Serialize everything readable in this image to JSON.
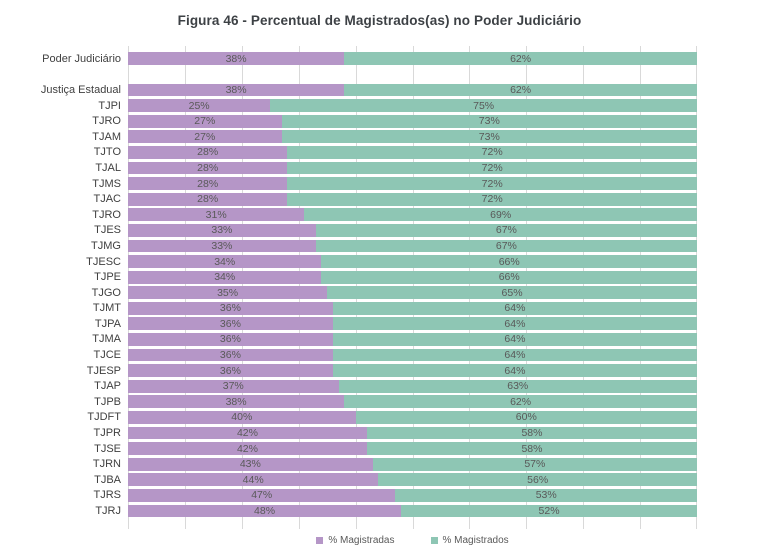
{
  "title": "Figura 46 - Percentual de Magistrados(as) no Poder Judiciário",
  "colors": {
    "magistradas": "#b596c7",
    "magistrados": "#8ec6b4",
    "gridline": "#d9d9d9",
    "title_text": "#3d4145",
    "label_text": "#404040",
    "value_text": "#595959"
  },
  "chart_data": {
    "type": "bar",
    "orientation": "horizontal",
    "stacked": true,
    "title": "Figura 46 - Percentual de Magistrados(as) no Poder Judiciário",
    "xlim": [
      0,
      100
    ],
    "unit": "%",
    "gridlines": "vertical, every 10%",
    "legend_position": "bottom-center",
    "series": [
      {
        "name": "% Magistradas",
        "color": "#b596c7"
      },
      {
        "name": "% Magistrados",
        "color": "#8ec6b4"
      }
    ],
    "rows": [
      {
        "label": "Poder Judiciário",
        "magistradas": 38,
        "magistrados": 62
      },
      {
        "label": "",
        "spacer": true
      },
      {
        "label": "Justiça Estadual",
        "magistradas": 38,
        "magistrados": 62
      },
      {
        "label": "TJPI",
        "magistradas": 25,
        "magistrados": 75
      },
      {
        "label": "TJRO",
        "magistradas": 27,
        "magistrados": 73
      },
      {
        "label": "TJAM",
        "magistradas": 27,
        "magistrados": 73
      },
      {
        "label": "TJTO",
        "magistradas": 28,
        "magistrados": 72
      },
      {
        "label": "TJAL",
        "magistradas": 28,
        "magistrados": 72
      },
      {
        "label": "TJMS",
        "magistradas": 28,
        "magistrados": 72
      },
      {
        "label": "TJAC",
        "magistradas": 28,
        "magistrados": 72
      },
      {
        "label": "TJRO",
        "magistradas": 31,
        "magistrados": 69
      },
      {
        "label": "TJES",
        "magistradas": 33,
        "magistrados": 67
      },
      {
        "label": "TJMG",
        "magistradas": 33,
        "magistrados": 67
      },
      {
        "label": "TJESC",
        "magistradas": 34,
        "magistrados": 66
      },
      {
        "label": "TJPE",
        "magistradas": 34,
        "magistrados": 66
      },
      {
        "label": "TJGO",
        "magistradas": 35,
        "magistrados": 65
      },
      {
        "label": "TJMT",
        "magistradas": 36,
        "magistrados": 64
      },
      {
        "label": "TJPA",
        "magistradas": 36,
        "magistrados": 64
      },
      {
        "label": "TJMA",
        "magistradas": 36,
        "magistrados": 64
      },
      {
        "label": "TJCE",
        "magistradas": 36,
        "magistrados": 64
      },
      {
        "label": "TJESP",
        "magistradas": 36,
        "magistrados": 64
      },
      {
        "label": "TJAP",
        "magistradas": 37,
        "magistrados": 63
      },
      {
        "label": "TJPB",
        "magistradas": 38,
        "magistrados": 62
      },
      {
        "label": "TJDFT",
        "magistradas": 40,
        "magistrados": 60
      },
      {
        "label": "TJPR",
        "magistradas": 42,
        "magistrados": 58
      },
      {
        "label": "TJSE",
        "magistradas": 42,
        "magistrados": 58
      },
      {
        "label": "TJRN",
        "magistradas": 43,
        "magistrados": 57
      },
      {
        "label": "TJBA",
        "magistradas": 44,
        "magistrados": 56
      },
      {
        "label": "TJRS",
        "magistradas": 47,
        "magistrados": 53
      },
      {
        "label": "TJRJ",
        "magistradas": 48,
        "magistrados": 52
      }
    ]
  }
}
